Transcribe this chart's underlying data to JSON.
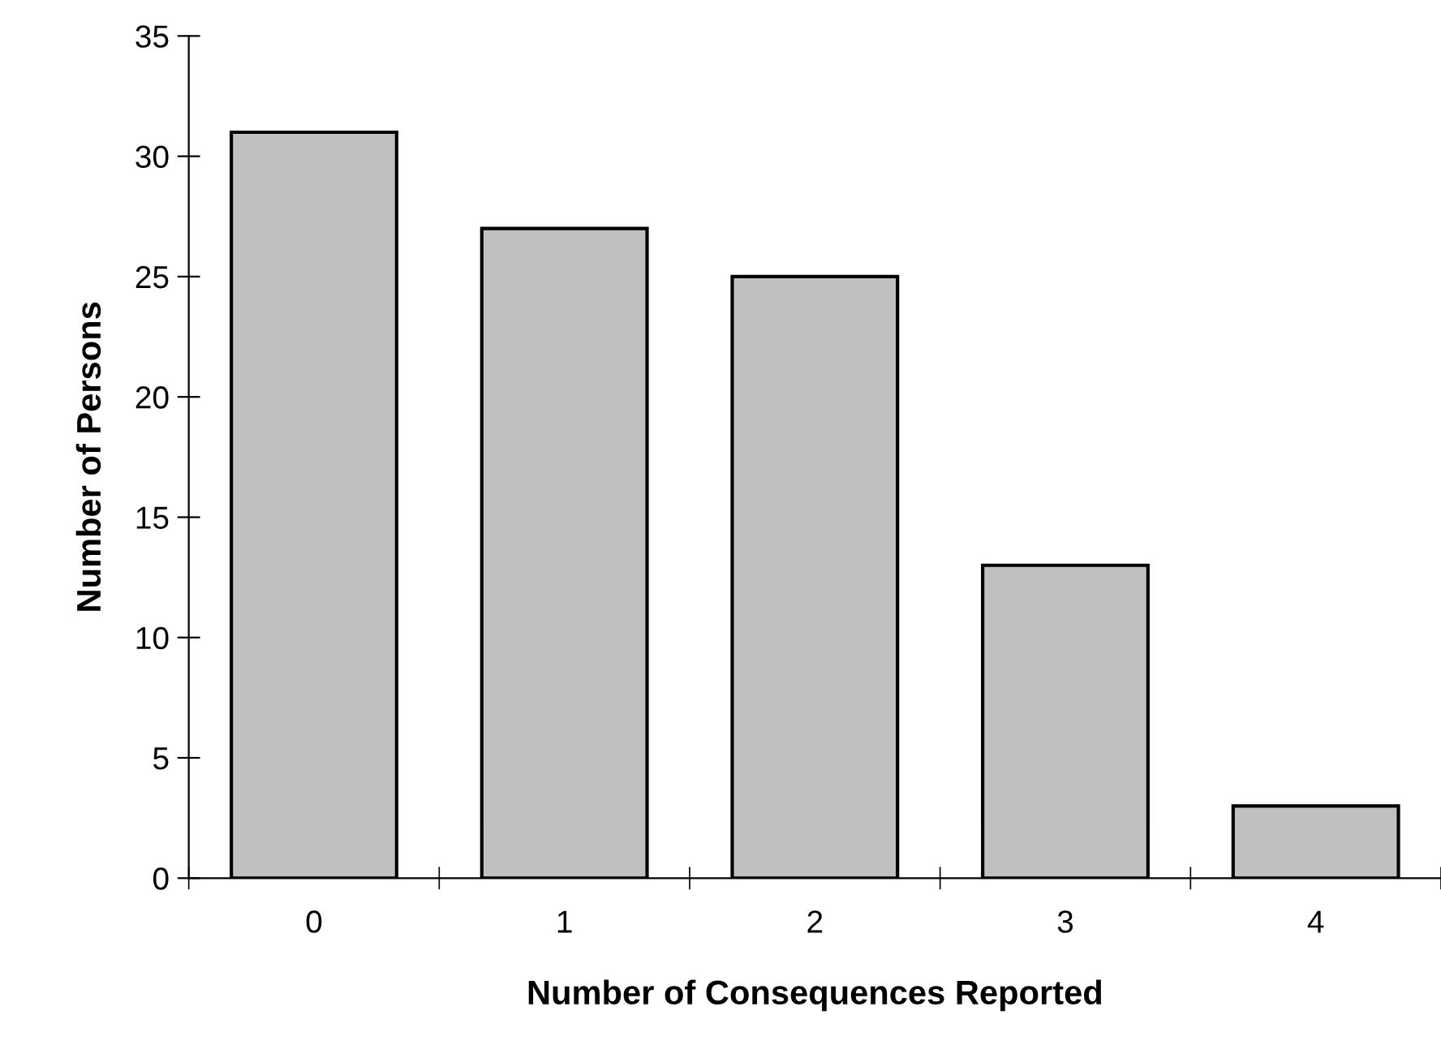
{
  "chart_data": {
    "type": "bar",
    "xlabel": "Number of Consequences Reported",
    "ylabel": "Number of Persons",
    "categories": [
      "0",
      "1",
      "2",
      "3",
      "4"
    ],
    "values": [
      31,
      27,
      25,
      13,
      3
    ],
    "color": "#c0c0c0",
    "ylim": [
      0,
      35
    ],
    "yticks": [
      0,
      5,
      10,
      15,
      20,
      25,
      30,
      35
    ],
    "grid": false
  }
}
